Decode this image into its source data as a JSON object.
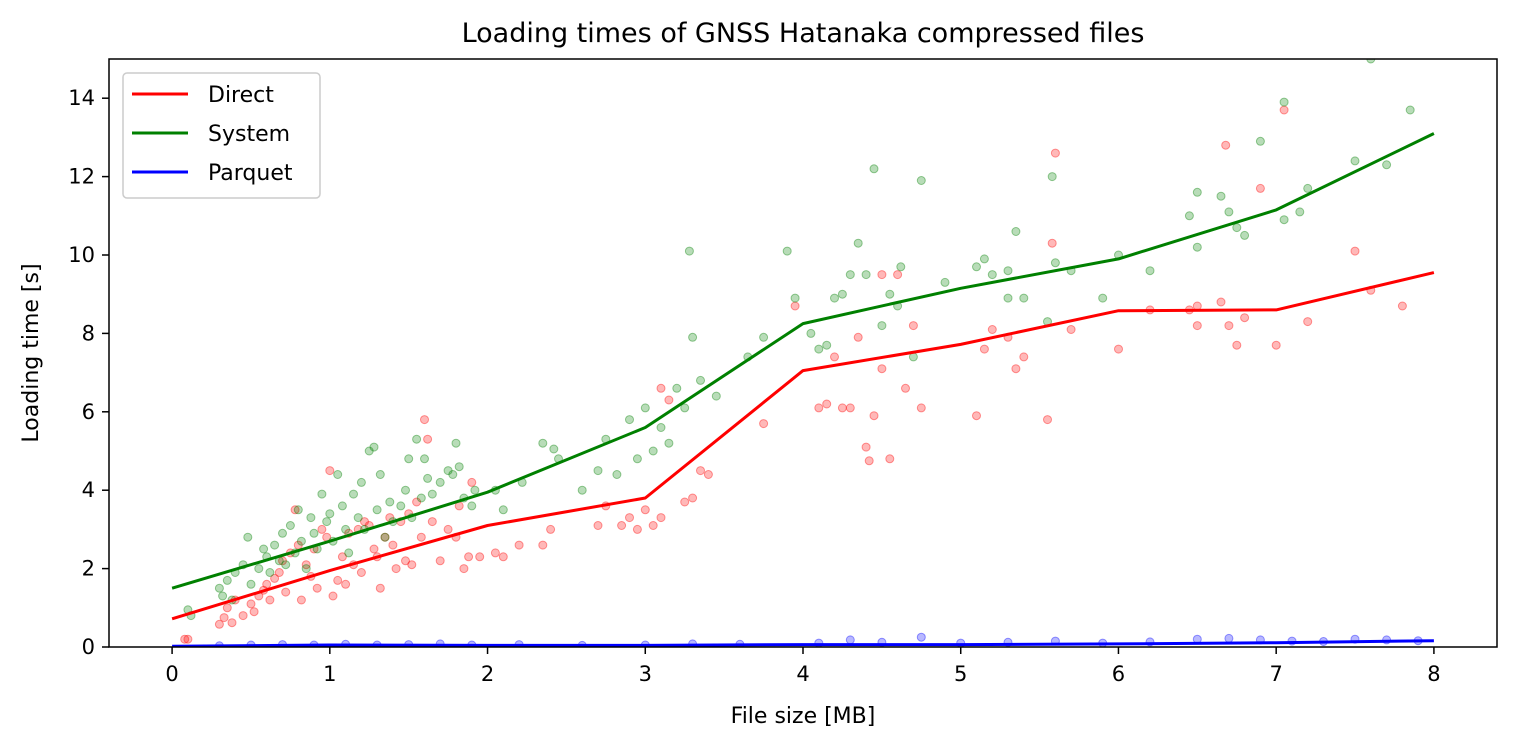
{
  "chart_data": {
    "type": "line",
    "title": "Loading times of GNSS Hatanaka compressed files",
    "xlabel": "File size [MB]",
    "ylabel": "Loading time [s]",
    "xlim": [
      -0.4,
      8.4
    ],
    "ylim": [
      0,
      15
    ],
    "xticks": [
      "0",
      "1",
      "2",
      "3",
      "4",
      "5",
      "6",
      "7",
      "8"
    ],
    "yticks": [
      "0",
      "2",
      "4",
      "6",
      "8",
      "10",
      "12",
      "14"
    ],
    "grid": false,
    "legend_position": "top-left",
    "series": [
      {
        "name": "Direct",
        "color": "#ff0000",
        "x": [
          0,
          1,
          2,
          3,
          4,
          5,
          6,
          7,
          8
        ],
        "values": [
          0.72,
          1.95,
          3.1,
          3.8,
          7.05,
          7.72,
          8.58,
          8.6,
          9.55
        ],
        "scatter": [
          [
            0.08,
            0.2
          ],
          [
            0.1,
            0.2
          ],
          [
            0.3,
            0.58
          ],
          [
            0.33,
            0.75
          ],
          [
            0.35,
            1.0
          ],
          [
            0.38,
            0.62
          ],
          [
            0.4,
            1.2
          ],
          [
            0.45,
            0.8
          ],
          [
            0.5,
            1.1
          ],
          [
            0.52,
            0.9
          ],
          [
            0.55,
            1.3
          ],
          [
            0.58,
            1.45
          ],
          [
            0.6,
            1.6
          ],
          [
            0.62,
            1.2
          ],
          [
            0.65,
            1.75
          ],
          [
            0.68,
            1.9
          ],
          [
            0.7,
            2.2
          ],
          [
            0.72,
            1.4
          ],
          [
            0.75,
            2.4
          ],
          [
            0.78,
            3.5
          ],
          [
            0.8,
            2.6
          ],
          [
            0.82,
            1.2
          ],
          [
            0.85,
            2.1
          ],
          [
            0.88,
            1.8
          ],
          [
            0.9,
            2.5
          ],
          [
            0.92,
            1.5
          ],
          [
            0.95,
            3.0
          ],
          [
            0.98,
            2.8
          ],
          [
            1.0,
            4.5
          ],
          [
            1.02,
            1.3
          ],
          [
            1.05,
            1.7
          ],
          [
            1.08,
            2.3
          ],
          [
            1.1,
            1.6
          ],
          [
            1.12,
            2.9
          ],
          [
            1.15,
            2.1
          ],
          [
            1.18,
            3.0
          ],
          [
            1.2,
            1.9
          ],
          [
            1.22,
            3.2
          ],
          [
            1.25,
            3.1
          ],
          [
            1.28,
            2.5
          ],
          [
            1.3,
            2.3
          ],
          [
            1.32,
            1.5
          ],
          [
            1.35,
            2.8
          ],
          [
            1.38,
            3.3
          ],
          [
            1.4,
            2.6
          ],
          [
            1.42,
            2.0
          ],
          [
            1.45,
            3.2
          ],
          [
            1.48,
            2.2
          ],
          [
            1.5,
            3.4
          ],
          [
            1.52,
            2.1
          ],
          [
            1.55,
            3.7
          ],
          [
            1.58,
            2.8
          ],
          [
            1.6,
            5.8
          ],
          [
            1.62,
            5.3
          ],
          [
            1.65,
            3.2
          ],
          [
            1.7,
            2.2
          ],
          [
            1.75,
            3.0
          ],
          [
            1.8,
            2.8
          ],
          [
            1.82,
            3.6
          ],
          [
            1.85,
            2.0
          ],
          [
            1.88,
            2.3
          ],
          [
            1.9,
            4.2
          ],
          [
            1.95,
            2.3
          ],
          [
            2.05,
            2.4
          ],
          [
            2.1,
            2.3
          ],
          [
            2.2,
            2.6
          ],
          [
            2.35,
            2.6
          ],
          [
            2.4,
            3.0
          ],
          [
            2.7,
            3.1
          ],
          [
            2.75,
            3.6
          ],
          [
            2.85,
            3.1
          ],
          [
            2.9,
            3.3
          ],
          [
            2.95,
            3.0
          ],
          [
            3.0,
            3.5
          ],
          [
            3.05,
            3.1
          ],
          [
            3.1,
            3.3
          ],
          [
            3.15,
            6.3
          ],
          [
            3.1,
            6.6
          ],
          [
            3.25,
            3.7
          ],
          [
            3.3,
            3.8
          ],
          [
            3.35,
            4.5
          ],
          [
            3.4,
            4.4
          ],
          [
            3.75,
            5.7
          ],
          [
            3.95,
            8.7
          ],
          [
            4.1,
            6.1
          ],
          [
            4.15,
            6.2
          ],
          [
            4.2,
            7.4
          ],
          [
            4.25,
            6.1
          ],
          [
            4.3,
            6.1
          ],
          [
            4.35,
            7.9
          ],
          [
            4.4,
            5.1
          ],
          [
            4.42,
            4.75
          ],
          [
            4.45,
            5.9
          ],
          [
            4.5,
            7.1
          ],
          [
            4.55,
            4.8
          ],
          [
            4.6,
            9.5
          ],
          [
            4.65,
            6.6
          ],
          [
            4.7,
            8.2
          ],
          [
            4.75,
            6.1
          ],
          [
            4.5,
            9.5
          ],
          [
            5.1,
            5.9
          ],
          [
            5.15,
            7.6
          ],
          [
            5.2,
            8.1
          ],
          [
            5.3,
            7.9
          ],
          [
            5.35,
            7.1
          ],
          [
            5.4,
            7.4
          ],
          [
            5.55,
            5.8
          ],
          [
            5.58,
            10.3
          ],
          [
            5.6,
            12.6
          ],
          [
            5.7,
            8.1
          ],
          [
            6.0,
            7.6
          ],
          [
            6.2,
            8.6
          ],
          [
            6.45,
            8.6
          ],
          [
            6.5,
            8.7
          ],
          [
            6.5,
            8.2
          ],
          [
            6.65,
            8.8
          ],
          [
            6.7,
            8.2
          ],
          [
            6.75,
            7.7
          ],
          [
            6.8,
            8.4
          ],
          [
            6.9,
            11.7
          ],
          [
            6.68,
            12.8
          ],
          [
            7.0,
            7.7
          ],
          [
            7.05,
            13.7
          ],
          [
            7.2,
            8.3
          ],
          [
            7.5,
            10.1
          ],
          [
            7.6,
            9.1
          ],
          [
            7.8,
            8.7
          ]
        ]
      },
      {
        "name": "System",
        "color": "#008000",
        "x": [
          0,
          1,
          2,
          3,
          4,
          5,
          6,
          7,
          8
        ],
        "values": [
          1.5,
          2.7,
          3.95,
          5.6,
          8.25,
          9.15,
          9.9,
          11.15,
          13.1
        ],
        "scatter": [
          [
            0.1,
            0.95
          ],
          [
            0.12,
            0.8
          ],
          [
            0.3,
            1.5
          ],
          [
            0.32,
            1.3
          ],
          [
            0.35,
            1.7
          ],
          [
            0.38,
            1.2
          ],
          [
            0.4,
            1.9
          ],
          [
            0.45,
            2.1
          ],
          [
            0.48,
            2.8
          ],
          [
            0.5,
            1.6
          ],
          [
            0.55,
            2.0
          ],
          [
            0.58,
            2.5
          ],
          [
            0.6,
            2.3
          ],
          [
            0.62,
            1.9
          ],
          [
            0.65,
            2.6
          ],
          [
            0.68,
            2.2
          ],
          [
            0.7,
            2.9
          ],
          [
            0.72,
            2.1
          ],
          [
            0.75,
            3.1
          ],
          [
            0.78,
            2.4
          ],
          [
            0.8,
            3.5
          ],
          [
            0.82,
            2.7
          ],
          [
            0.85,
            2.0
          ],
          [
            0.88,
            3.3
          ],
          [
            0.9,
            2.9
          ],
          [
            0.92,
            2.5
          ],
          [
            0.95,
            3.9
          ],
          [
            0.98,
            3.2
          ],
          [
            1.0,
            3.4
          ],
          [
            1.02,
            2.7
          ],
          [
            1.05,
            4.4
          ],
          [
            1.08,
            3.6
          ],
          [
            1.1,
            3.0
          ],
          [
            1.12,
            2.4
          ],
          [
            1.15,
            3.9
          ],
          [
            1.18,
            3.3
          ],
          [
            1.2,
            4.2
          ],
          [
            1.22,
            3.0
          ],
          [
            1.25,
            5.0
          ],
          [
            1.28,
            5.1
          ],
          [
            1.3,
            3.5
          ],
          [
            1.32,
            4.4
          ],
          [
            1.35,
            2.8
          ],
          [
            1.38,
            3.7
          ],
          [
            1.4,
            3.2
          ],
          [
            1.45,
            3.6
          ],
          [
            1.48,
            4.0
          ],
          [
            1.5,
            4.8
          ],
          [
            1.52,
            3.3
          ],
          [
            1.55,
            5.3
          ],
          [
            1.58,
            3.8
          ],
          [
            1.6,
            4.8
          ],
          [
            1.62,
            4.3
          ],
          [
            1.65,
            3.9
          ],
          [
            1.7,
            4.2
          ],
          [
            1.75,
            4.5
          ],
          [
            1.78,
            4.4
          ],
          [
            1.8,
            5.2
          ],
          [
            1.82,
            4.6
          ],
          [
            1.85,
            3.8
          ],
          [
            1.9,
            3.6
          ],
          [
            1.92,
            4.0
          ],
          [
            2.05,
            4.0
          ],
          [
            2.1,
            3.5
          ],
          [
            2.22,
            4.2
          ],
          [
            2.35,
            5.2
          ],
          [
            2.42,
            5.05
          ],
          [
            2.45,
            4.8
          ],
          [
            2.6,
            4.0
          ],
          [
            2.7,
            4.5
          ],
          [
            2.75,
            5.3
          ],
          [
            2.82,
            4.4
          ],
          [
            2.9,
            5.8
          ],
          [
            2.95,
            4.8
          ],
          [
            3.0,
            6.1
          ],
          [
            3.05,
            5.0
          ],
          [
            3.1,
            5.6
          ],
          [
            3.15,
            5.2
          ],
          [
            3.2,
            6.6
          ],
          [
            3.25,
            6.1
          ],
          [
            3.28,
            10.1
          ],
          [
            3.3,
            7.9
          ],
          [
            3.35,
            6.8
          ],
          [
            3.45,
            6.4
          ],
          [
            3.65,
            7.4
          ],
          [
            3.75,
            7.9
          ],
          [
            3.9,
            10.1
          ],
          [
            3.95,
            8.9
          ],
          [
            4.05,
            8.0
          ],
          [
            4.1,
            7.6
          ],
          [
            4.15,
            7.7
          ],
          [
            4.2,
            8.9
          ],
          [
            4.25,
            9.0
          ],
          [
            4.3,
            9.5
          ],
          [
            4.35,
            10.3
          ],
          [
            4.4,
            9.5
          ],
          [
            4.45,
            12.2
          ],
          [
            4.5,
            8.2
          ],
          [
            4.55,
            9.0
          ],
          [
            4.6,
            8.7
          ],
          [
            4.62,
            9.7
          ],
          [
            4.7,
            7.4
          ],
          [
            4.75,
            11.9
          ],
          [
            4.9,
            9.3
          ],
          [
            5.1,
            9.7
          ],
          [
            5.15,
            9.9
          ],
          [
            5.2,
            9.5
          ],
          [
            5.3,
            9.6
          ],
          [
            5.35,
            10.6
          ],
          [
            5.4,
            8.9
          ],
          [
            5.3,
            8.9
          ],
          [
            5.55,
            8.3
          ],
          [
            5.58,
            12.0
          ],
          [
            5.6,
            9.8
          ],
          [
            5.7,
            9.6
          ],
          [
            5.9,
            8.9
          ],
          [
            6.0,
            10.0
          ],
          [
            6.2,
            9.6
          ],
          [
            6.45,
            11.0
          ],
          [
            6.5,
            11.6
          ],
          [
            6.5,
            10.2
          ],
          [
            6.65,
            11.5
          ],
          [
            6.7,
            11.1
          ],
          [
            6.75,
            10.7
          ],
          [
            6.8,
            10.5
          ],
          [
            6.9,
            12.9
          ],
          [
            7.05,
            13.9
          ],
          [
            7.05,
            10.9
          ],
          [
            7.15,
            11.1
          ],
          [
            7.2,
            11.7
          ],
          [
            7.5,
            12.4
          ],
          [
            7.6,
            15.0
          ],
          [
            7.7,
            12.3
          ],
          [
            7.85,
            13.7
          ]
        ]
      },
      {
        "name": "Parquet",
        "color": "#0000ff",
        "x": [
          0,
          1,
          2,
          3,
          4,
          5,
          6,
          7,
          8
        ],
        "values": [
          0.02,
          0.05,
          0.04,
          0.04,
          0.06,
          0.06,
          0.08,
          0.11,
          0.16
        ],
        "scatter": [
          [
            0.3,
            0.03
          ],
          [
            0.5,
            0.05
          ],
          [
            0.7,
            0.06
          ],
          [
            0.9,
            0.05
          ],
          [
            1.1,
            0.07
          ],
          [
            1.3,
            0.05
          ],
          [
            1.5,
            0.06
          ],
          [
            1.7,
            0.08
          ],
          [
            1.9,
            0.05
          ],
          [
            2.2,
            0.06
          ],
          [
            2.6,
            0.04
          ],
          [
            3.0,
            0.05
          ],
          [
            3.3,
            0.08
          ],
          [
            3.6,
            0.07
          ],
          [
            4.1,
            0.1
          ],
          [
            4.3,
            0.18
          ],
          [
            4.5,
            0.12
          ],
          [
            4.75,
            0.25
          ],
          [
            5.0,
            0.1
          ],
          [
            5.3,
            0.12
          ],
          [
            5.6,
            0.15
          ],
          [
            5.9,
            0.1
          ],
          [
            6.2,
            0.13
          ],
          [
            6.5,
            0.2
          ],
          [
            6.7,
            0.22
          ],
          [
            6.9,
            0.18
          ],
          [
            7.1,
            0.15
          ],
          [
            7.3,
            0.14
          ],
          [
            7.5,
            0.2
          ],
          [
            7.7,
            0.18
          ],
          [
            7.9,
            0.16
          ]
        ]
      }
    ]
  }
}
